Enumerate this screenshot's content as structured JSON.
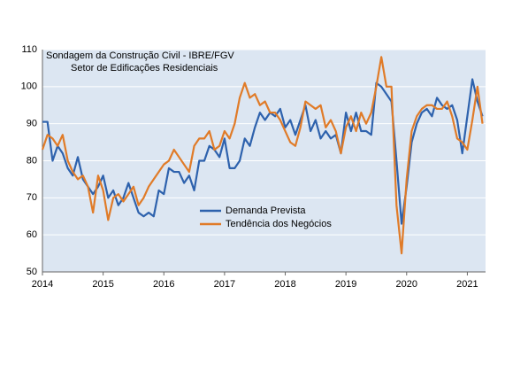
{
  "chart_data": {
    "type": "line",
    "title": "Sondagem da Construção Civil - IBRE/FGV",
    "subtitle": "Setor de Edificações Residenciais",
    "x": [
      2014,
      2014.083,
      2014.167,
      2014.25,
      2014.333,
      2014.417,
      2014.5,
      2014.583,
      2014.667,
      2014.75,
      2014.833,
      2014.917,
      2015,
      2015.083,
      2015.167,
      2015.25,
      2015.333,
      2015.417,
      2015.5,
      2015.583,
      2015.667,
      2015.75,
      2015.833,
      2015.917,
      2016,
      2016.083,
      2016.167,
      2016.25,
      2016.333,
      2016.417,
      2016.5,
      2016.583,
      2016.667,
      2016.75,
      2016.833,
      2016.917,
      2017,
      2017.083,
      2017.167,
      2017.25,
      2017.333,
      2017.417,
      2017.5,
      2017.583,
      2017.667,
      2017.75,
      2017.833,
      2017.917,
      2018,
      2018.083,
      2018.167,
      2018.25,
      2018.333,
      2018.417,
      2018.5,
      2018.583,
      2018.667,
      2018.75,
      2018.833,
      2018.917,
      2019,
      2019.083,
      2019.167,
      2019.25,
      2019.333,
      2019.417,
      2019.5,
      2019.583,
      2019.667,
      2019.75,
      2019.833,
      2019.917,
      2020,
      2020.083,
      2020.167,
      2020.25,
      2020.333,
      2020.417,
      2020.5,
      2020.583,
      2020.667,
      2020.75,
      2020.833,
      2020.917,
      2021,
      2021.083,
      2021.167,
      2021.25
    ],
    "series": [
      {
        "name": "Demanda Prevista",
        "color": "#2e62ad",
        "values": [
          90.5,
          90.5,
          80,
          84,
          82,
          78,
          76,
          81,
          75,
          73,
          71,
          73,
          76,
          70,
          72,
          68,
          70,
          74,
          70,
          66,
          65,
          66,
          65,
          72,
          71,
          78,
          77,
          77,
          74,
          76,
          72,
          80,
          80,
          84,
          83,
          81,
          86,
          78,
          78,
          80,
          86,
          84,
          89,
          93,
          91,
          93,
          92,
          94,
          89,
          91,
          87,
          91,
          95,
          88,
          91,
          86,
          88,
          86,
          87,
          82,
          93,
          88,
          93,
          88,
          88,
          87,
          101,
          100,
          98,
          96,
          80,
          63,
          73,
          85,
          90,
          93,
          94,
          92,
          97,
          95,
          94,
          95,
          91,
          82,
          92,
          102,
          96,
          92
        ]
      },
      {
        "name": "Tendência dos Negócios",
        "color": "#e07b28",
        "values": [
          83,
          87,
          86,
          84,
          87,
          80,
          77,
          75,
          76,
          73,
          66,
          76,
          72,
          64,
          70,
          71,
          69,
          71,
          73,
          68,
          70,
          73,
          75,
          77,
          79,
          80,
          83,
          81,
          79,
          77,
          84,
          86,
          86,
          88,
          83,
          84,
          88,
          86,
          90,
          97,
          101,
          97,
          98,
          95,
          96,
          93,
          93,
          91,
          88,
          85,
          84,
          89,
          96,
          95,
          94,
          95,
          89,
          91,
          88,
          82,
          89,
          92,
          88,
          93,
          90,
          93,
          100,
          108,
          100,
          100,
          68,
          55,
          75,
          88,
          92,
          94,
          95,
          95,
          94,
          94,
          96,
          92,
          86,
          85,
          83,
          91,
          100,
          90
        ]
      }
    ],
    "xlim": [
      2014,
      2021.3
    ],
    "xticks": [
      2014,
      2015,
      2016,
      2017,
      2018,
      2019,
      2020,
      2021
    ],
    "ylim": [
      50,
      110
    ],
    "yticks": [
      50,
      60,
      70,
      80,
      90,
      100,
      110
    ],
    "grid": true
  }
}
